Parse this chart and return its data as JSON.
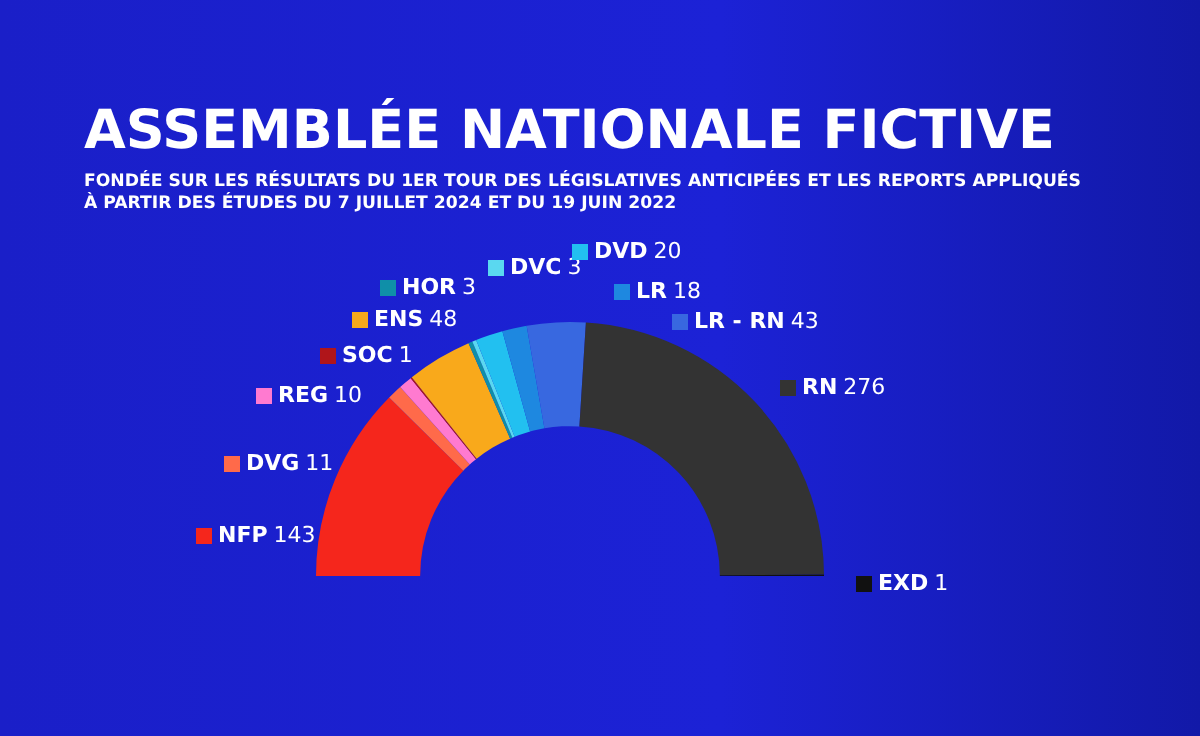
{
  "chart_data": {
    "type": "donut",
    "title": "ASSEMBLÉE NATIONALE FICTIVE",
    "subtitle": "FONDÉE SUR LES RÉSULTATS DU 1ER TOUR DES LÉGISLATIVES ANTICIPÉES ET LES REPORTS APPLIQUÉS À PARTIR DES ÉTUDES DU 7 JUILLET 2024 ET DU 19 JUIN 2022",
    "categories": [
      "NFP",
      "DVG",
      "REG",
      "SOC",
      "ENS",
      "HOR",
      "DVC",
      "DVD",
      "LR",
      "LR - RN",
      "RN",
      "EXD"
    ],
    "values": [
      143,
      11,
      10,
      1,
      48,
      3,
      3,
      20,
      18,
      43,
      276,
      1
    ],
    "colors": [
      "#f5261c",
      "#ff6a4a",
      "#ff7ad0",
      "#b0151a",
      "#f9a91b",
      "#0f8fa8",
      "#5ad8f0",
      "#22c0f0",
      "#1e88e0",
      "#3868e0",
      "#333333",
      "#111111"
    ],
    "data_labels": true,
    "legend": "top left"
  }
}
